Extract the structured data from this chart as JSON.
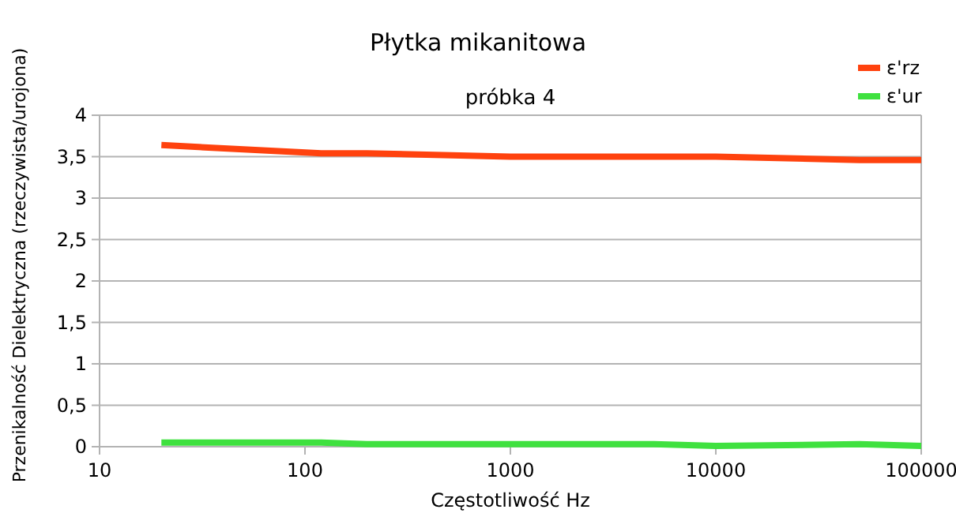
{
  "chart_data": {
    "type": "line",
    "title": "Płytka mikanitowa",
    "subtitle": "próbka 4",
    "xlabel": "Częstotliwość Hz",
    "ylabel": "Przenikalność Dielektryczna (rzeczywista/urojona)",
    "log": "x",
    "xlim": [
      10,
      100000
    ],
    "xticks": [
      10,
      100,
      1000,
      10000,
      100000
    ],
    "ylim": [
      0,
      4
    ],
    "yticks": [
      0,
      {
        "value": 0.5,
        "label": "0,5"
      },
      1,
      {
        "value": 1.5,
        "label": "1,5"
      },
      2,
      {
        "value": 2.5,
        "label": "2,5"
      },
      3,
      {
        "value": 3.5,
        "label": "3,5"
      },
      4
    ],
    "grid": "y",
    "legend": "top right",
    "marker": "none",
    "line_style": "solid",
    "x": [
      20,
      120,
      200,
      1000,
      5000,
      10000,
      50000,
      100000
    ],
    "series": [
      {
        "name": "ε'rz",
        "color": "#ff420e",
        "values": [
          3.64,
          3.54,
          3.54,
          3.5,
          3.5,
          3.5,
          3.46,
          3.46
        ]
      },
      {
        "name": "ε'ur",
        "color": "#3fe13f",
        "values": [
          0.05,
          0.05,
          0.03,
          0.03,
          0.03,
          0.01,
          0.03,
          0.01
        ]
      }
    ]
  }
}
